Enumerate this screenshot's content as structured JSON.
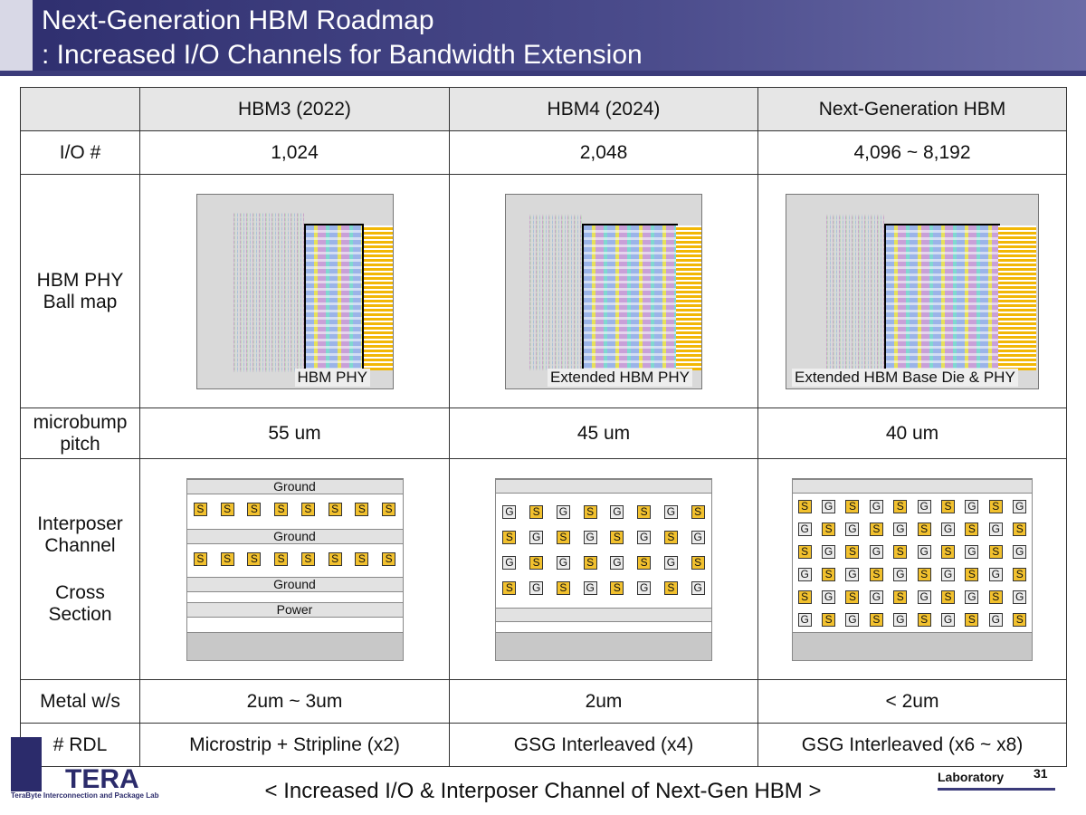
{
  "title": {
    "line1": "Next-Generation HBM Roadmap",
    "line2": ": Increased I/O Channels for Bandwidth Extension"
  },
  "columns": [
    "HBM3 (2022)",
    "HBM4 (2024)",
    "Next-Generation HBM"
  ],
  "rows": {
    "io_label": "I/O #",
    "io_values": [
      "1,024",
      "2,048",
      "4,096 ~ 8,192"
    ],
    "phy_label_1": "HBM PHY",
    "phy_label_2": "Ball map",
    "phy_captions": [
      "HBM PHY",
      "Extended HBM PHY",
      "Extended HBM Base Die & PHY"
    ],
    "pitch_label_1": "microbump",
    "pitch_label_2": "pitch",
    "pitch_values": [
      "55 um",
      "45 um",
      "40 um"
    ],
    "channel_label_1": "Interposer",
    "channel_label_2": "Channel",
    "channel_label_3": "Cross",
    "channel_label_4": "Section",
    "metal_label": "Metal w/s",
    "metal_values": [
      "2um ~ 3um",
      "2um",
      "< 2um"
    ],
    "rdl_label": "# RDL",
    "rdl_values": [
      "Microstrip + Stripline (x2)",
      "GSG Interleaved (x4)",
      "GSG Interleaved (x6 ~ x8)"
    ]
  },
  "cross_section": {
    "hbm3_layers": [
      "Ground",
      "Ground",
      "Ground",
      "Power"
    ],
    "hbm3_rows": [
      [
        "S",
        "S",
        "S",
        "S",
        "S",
        "S",
        "S",
        "S"
      ],
      [
        "S",
        "S",
        "S",
        "S",
        "S",
        "S",
        "S",
        "S"
      ]
    ],
    "hbm4_rows": [
      [
        "G",
        "S",
        "G",
        "S",
        "G",
        "S",
        "G",
        "S"
      ],
      [
        "S",
        "G",
        "S",
        "G",
        "S",
        "G",
        "S",
        "G"
      ],
      [
        "G",
        "S",
        "G",
        "S",
        "G",
        "S",
        "G",
        "S"
      ],
      [
        "S",
        "G",
        "S",
        "G",
        "S",
        "G",
        "S",
        "G"
      ]
    ],
    "next_rows": [
      [
        "S",
        "G",
        "S",
        "G",
        "S",
        "G",
        "S",
        "G",
        "S",
        "G"
      ],
      [
        "G",
        "S",
        "G",
        "S",
        "G",
        "S",
        "G",
        "S",
        "G",
        "S"
      ],
      [
        "S",
        "G",
        "S",
        "G",
        "S",
        "G",
        "S",
        "G",
        "S",
        "G"
      ],
      [
        "G",
        "S",
        "G",
        "S",
        "G",
        "S",
        "G",
        "S",
        "G",
        "S"
      ],
      [
        "S",
        "G",
        "S",
        "G",
        "S",
        "G",
        "S",
        "G",
        "S",
        "G"
      ],
      [
        "G",
        "S",
        "G",
        "S",
        "G",
        "S",
        "G",
        "S",
        "G",
        "S"
      ]
    ]
  },
  "footer": {
    "caption": "< Increased I/O & Interposer Channel of Next-Gen HBM >",
    "lab": "Laboratory",
    "page": "31",
    "logo_word": "TERA",
    "logo_sub": "TeraByte Interconnection and Package Lab"
  },
  "colors": {
    "header": "#3b3b7a",
    "signal": "#f2c12e",
    "ground": "#ececec",
    "phy_yellow": "#f2b705"
  }
}
